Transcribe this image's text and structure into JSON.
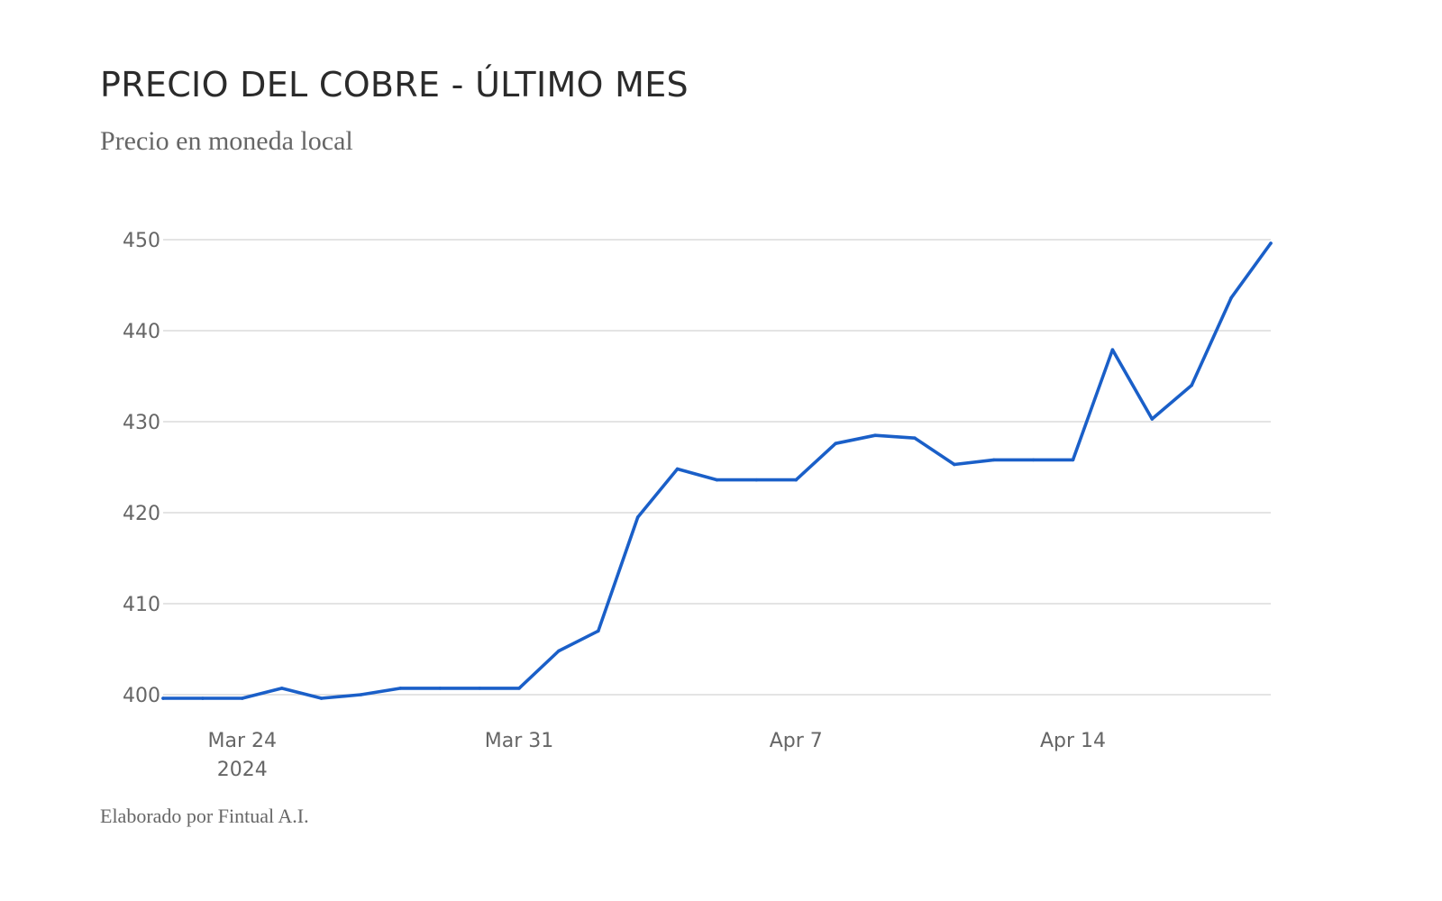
{
  "title": "PRECIO DEL COBRE - ÚLTIMO MES",
  "subtitle": "Precio en moneda local",
  "footer": "Elaborado por Fintual A.I.",
  "colors": {
    "line": "#1a5fc8",
    "grid": "#d3d3d3",
    "text": "#666666",
    "title": "#2b2b2b"
  },
  "chart_data": {
    "type": "line",
    "title": "PRECIO DEL COBRE - ÚLTIMO MES",
    "subtitle": "Precio en moneda local",
    "xlabel": "",
    "ylabel": "",
    "ylim": [
      400,
      450
    ],
    "xlim": [
      "2024-03-22",
      "2024-04-19"
    ],
    "grid": true,
    "legend": "none",
    "y_ticks": [
      400,
      410,
      420,
      430,
      440,
      450
    ],
    "x_ticks": [
      {
        "date": "2024-03-24",
        "label": "Mar 24",
        "sublabel": "2024"
      },
      {
        "date": "2024-03-31",
        "label": "Mar 31",
        "sublabel": ""
      },
      {
        "date": "2024-04-07",
        "label": "Apr 7",
        "sublabel": ""
      },
      {
        "date": "2024-04-14",
        "label": "Apr 14",
        "sublabel": ""
      }
    ],
    "series": [
      {
        "points": [
          {
            "x": "2024-03-22",
            "y": 399.6
          },
          {
            "x": "2024-03-23",
            "y": 399.6
          },
          {
            "x": "2024-03-24",
            "y": 399.6
          },
          {
            "x": "2024-03-25",
            "y": 400.7
          },
          {
            "x": "2024-03-26",
            "y": 399.6
          },
          {
            "x": "2024-03-27",
            "y": 400.0
          },
          {
            "x": "2024-03-28",
            "y": 400.7
          },
          {
            "x": "2024-03-29",
            "y": 400.7
          },
          {
            "x": "2024-03-30",
            "y": 400.7
          },
          {
            "x": "2024-03-31",
            "y": 400.7
          },
          {
            "x": "2024-04-01",
            "y": 404.8
          },
          {
            "x": "2024-04-02",
            "y": 407.0
          },
          {
            "x": "2024-04-03",
            "y": 419.5
          },
          {
            "x": "2024-04-04",
            "y": 424.8
          },
          {
            "x": "2024-04-05",
            "y": 423.6
          },
          {
            "x": "2024-04-06",
            "y": 423.6
          },
          {
            "x": "2024-04-07",
            "y": 423.6
          },
          {
            "x": "2024-04-08",
            "y": 427.6
          },
          {
            "x": "2024-04-09",
            "y": 428.5
          },
          {
            "x": "2024-04-10",
            "y": 428.2
          },
          {
            "x": "2024-04-11",
            "y": 425.3
          },
          {
            "x": "2024-04-12",
            "y": 425.8
          },
          {
            "x": "2024-04-13",
            "y": 425.8
          },
          {
            "x": "2024-04-14",
            "y": 425.8
          },
          {
            "x": "2024-04-15",
            "y": 437.9
          },
          {
            "x": "2024-04-16",
            "y": 430.3
          },
          {
            "x": "2024-04-17",
            "y": 434.0
          },
          {
            "x": "2024-04-18",
            "y": 443.6
          },
          {
            "x": "2024-04-19",
            "y": 449.6
          }
        ]
      }
    ]
  }
}
